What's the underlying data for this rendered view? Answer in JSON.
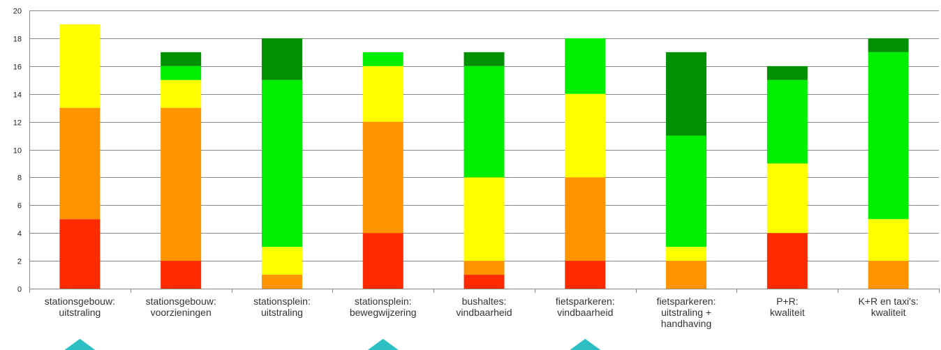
{
  "chart_data": {
    "type": "bar",
    "stacked": true,
    "categories": [
      [
        "stationsgebouw:",
        "uitstraling"
      ],
      [
        "stationsgebouw:",
        "voorzieningen"
      ],
      [
        "stationsplein:",
        "uitstraling"
      ],
      [
        "stationsplein:",
        "bewegwijzering"
      ],
      [
        "bushaltes:",
        "vindbaarheid"
      ],
      [
        "fietsparkeren:",
        "vindbaarheid"
      ],
      [
        "fietsparkeren:",
        "uitstraling +",
        "handhaving"
      ],
      [
        "P+R:",
        "kwaliteit"
      ],
      [
        "K+R en taxi's:",
        "kwaliteit"
      ]
    ],
    "series": [
      {
        "color": "#ff2a00",
        "values": [
          5,
          2,
          0,
          4,
          1,
          2,
          0,
          4,
          0
        ]
      },
      {
        "color": "#ff9400",
        "values": [
          8,
          11,
          1,
          8,
          1,
          6,
          2,
          0,
          2
        ]
      },
      {
        "color": "#ffff00",
        "values": [
          6,
          2,
          2,
          4,
          6,
          6,
          1,
          5,
          3
        ]
      },
      {
        "color": "#00ee00",
        "values": [
          0,
          1,
          12,
          1,
          8,
          4,
          8,
          6,
          12
        ]
      },
      {
        "color": "#009000",
        "values": [
          0,
          1,
          3,
          0,
          1,
          0,
          6,
          1,
          1
        ]
      }
    ],
    "ylim": [
      0,
      20
    ],
    "yticks": [
      0,
      2,
      4,
      6,
      8,
      10,
      12,
      14,
      16,
      18,
      20
    ],
    "grid": true,
    "legend": "none",
    "markers": {
      "color": "#2bbfc4",
      "categories": [
        0,
        3,
        5
      ]
    }
  }
}
